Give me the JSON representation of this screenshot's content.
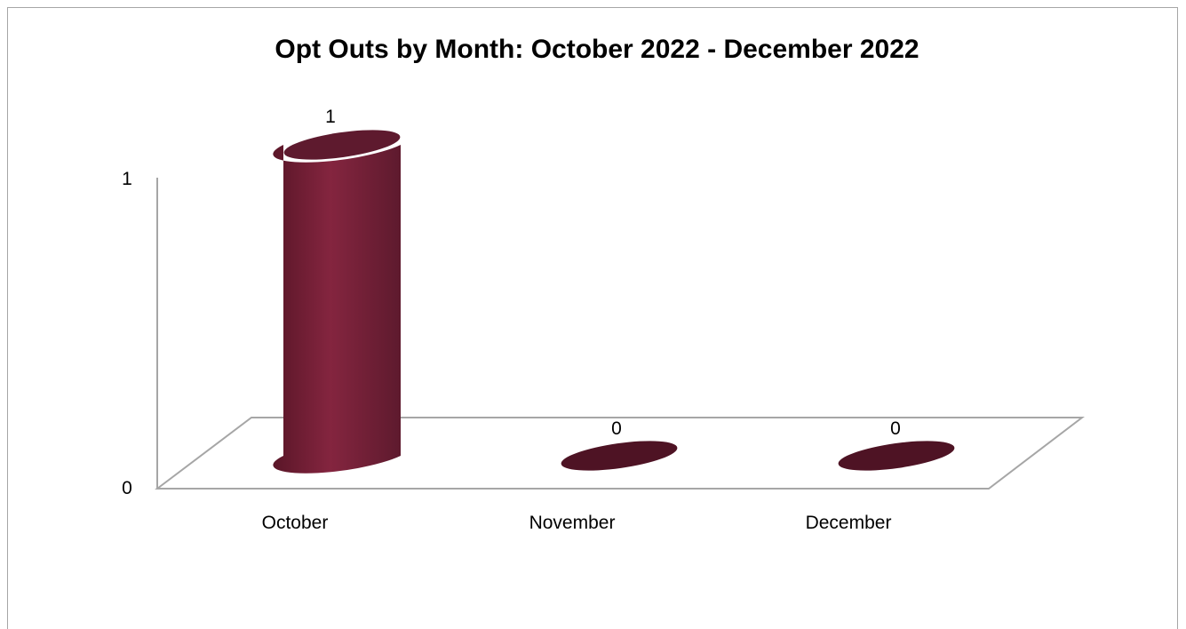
{
  "chart_data": {
    "type": "bar",
    "title": "Opt Outs by Month: October 2022 - December 2022",
    "xlabel": "",
    "ylabel": "",
    "categories": [
      "October",
      "November",
      "December"
    ],
    "values": [
      1,
      0,
      0
    ],
    "data_labels": [
      "1",
      "0",
      "0"
    ],
    "y_ticks": [
      "0",
      "1"
    ],
    "ylim": [
      0,
      1
    ],
    "grid": false,
    "legend": "none",
    "style": "3d-cylinder",
    "colors": {
      "bar": "#7a2038",
      "bar_dark": "#4e1324",
      "bar_top": "#5e1a2e",
      "axis": "#a6a6a6"
    }
  }
}
